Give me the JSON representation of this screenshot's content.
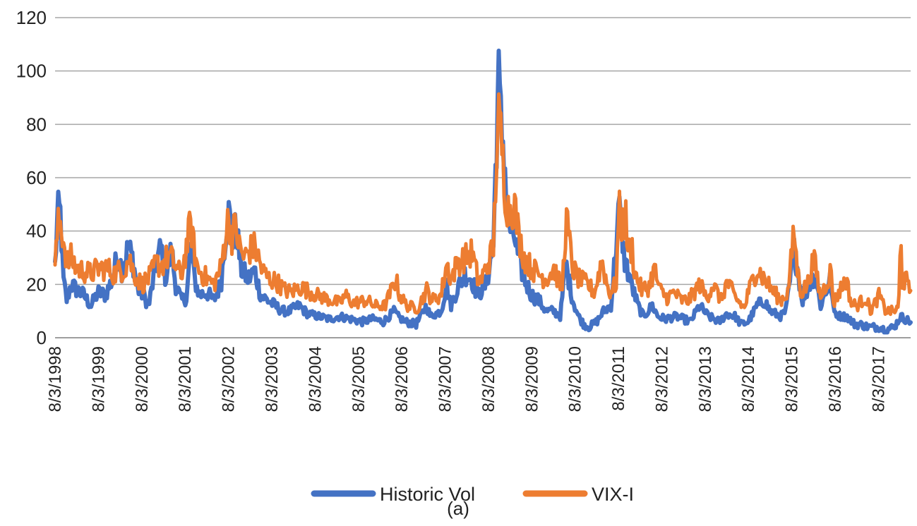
{
  "chart_data": {
    "type": "line",
    "title": "",
    "xlabel": "",
    "ylabel": "",
    "caption": "(a)",
    "ylim": [
      0,
      120
    ],
    "yticks": [
      0,
      20,
      40,
      60,
      80,
      100,
      120
    ],
    "xlim": [
      "1998-08-03",
      "2018-05-01"
    ],
    "x_tick_labels": [
      "8/3/1998",
      "8/3/1999",
      "8/3/2000",
      "8/3/2001",
      "8/3/2002",
      "8/3/2003",
      "8/3/2004",
      "8/3/2005",
      "8/3/2006",
      "8/3/2007",
      "8/3/2008",
      "8/3/2009",
      "8/3/2010",
      "8/3/2011",
      "8/3/2012",
      "8/3/2013",
      "8/3/2014",
      "8/3/2015",
      "8/3/2016",
      "8/3/2017"
    ],
    "grid": true,
    "legend_position": "bottom",
    "series": [
      {
        "name": "Historic Vol",
        "color": "#4472c4",
        "points": [
          [
            "1998-08-03",
            27
          ],
          [
            "1998-08-25",
            46
          ],
          [
            "1998-09-15",
            48
          ],
          [
            "1998-10-10",
            22
          ],
          [
            "1998-11-10",
            14
          ],
          [
            "1998-12-15",
            20
          ],
          [
            "1999-02-01",
            18
          ],
          [
            "1999-04-01",
            16
          ],
          [
            "1999-06-01",
            12
          ],
          [
            "1999-08-01",
            17
          ],
          [
            "1999-10-01",
            16
          ],
          [
            "1999-12-01",
            22
          ],
          [
            "2000-01-15",
            32
          ],
          [
            "2000-02-20",
            25
          ],
          [
            "2000-04-10",
            34
          ],
          [
            "2000-05-15",
            30
          ],
          [
            "2000-07-01",
            18
          ],
          [
            "2000-08-15",
            16
          ],
          [
            "2000-10-01",
            12
          ],
          [
            "2000-11-01",
            20
          ],
          [
            "2000-12-15",
            30
          ],
          [
            "2001-01-15",
            34
          ],
          [
            "2001-02-20",
            22
          ],
          [
            "2001-04-10",
            33
          ],
          [
            "2001-05-15",
            20
          ],
          [
            "2001-07-01",
            14
          ],
          [
            "2001-08-15",
            15
          ],
          [
            "2001-09-20",
            34
          ],
          [
            "2001-10-20",
            22
          ],
          [
            "2001-12-01",
            16
          ],
          [
            "2002-02-01",
            17
          ],
          [
            "2002-04-01",
            14
          ],
          [
            "2002-06-01",
            20
          ],
          [
            "2002-07-20",
            44
          ],
          [
            "2002-08-10",
            47
          ],
          [
            "2002-09-01",
            36
          ],
          [
            "2002-10-10",
            42
          ],
          [
            "2002-11-15",
            26
          ],
          [
            "2003-01-15",
            22
          ],
          [
            "2003-03-15",
            25
          ],
          [
            "2003-05-01",
            16
          ],
          [
            "2003-07-01",
            14
          ],
          [
            "2003-09-01",
            12
          ],
          [
            "2003-11-01",
            10
          ],
          [
            "2004-01-01",
            10
          ],
          [
            "2004-03-20",
            12
          ],
          [
            "2004-06-01",
            9
          ],
          [
            "2004-09-01",
            8
          ],
          [
            "2004-12-01",
            7
          ],
          [
            "2005-03-01",
            8
          ],
          [
            "2005-06-01",
            7
          ],
          [
            "2005-09-01",
            6
          ],
          [
            "2005-12-01",
            7
          ],
          [
            "2006-03-01",
            6
          ],
          [
            "2006-06-01",
            10
          ],
          [
            "2006-07-01",
            8
          ],
          [
            "2006-09-01",
            6
          ],
          [
            "2006-12-01",
            5
          ],
          [
            "2007-02-28",
            12
          ],
          [
            "2007-04-01",
            8
          ],
          [
            "2007-07-01",
            10
          ],
          [
            "2007-08-15",
            20
          ],
          [
            "2007-09-20",
            12
          ],
          [
            "2007-11-20",
            19
          ],
          [
            "2008-01-20",
            24
          ],
          [
            "2008-03-15",
            22
          ],
          [
            "2008-05-01",
            16
          ],
          [
            "2008-07-15",
            20
          ],
          [
            "2008-09-15",
            35
          ],
          [
            "2008-10-05",
            70
          ],
          [
            "2008-10-20",
            88
          ],
          [
            "2008-10-28",
            95
          ],
          [
            "2008-11-15",
            80
          ],
          [
            "2008-12-10",
            72
          ],
          [
            "2009-01-10",
            45
          ],
          [
            "2009-02-10",
            40
          ],
          [
            "2009-03-10",
            38
          ],
          [
            "2009-04-10",
            30
          ],
          [
            "2009-06-01",
            22
          ],
          [
            "2009-08-01",
            16
          ],
          [
            "2009-10-01",
            14
          ],
          [
            "2009-12-01",
            10
          ],
          [
            "2010-02-01",
            10
          ],
          [
            "2010-04-01",
            8
          ],
          [
            "2010-05-15",
            28
          ],
          [
            "2010-06-10",
            22
          ],
          [
            "2010-07-15",
            14
          ],
          [
            "2010-09-01",
            8
          ],
          [
            "2010-10-15",
            5
          ],
          [
            "2010-12-01",
            4
          ],
          [
            "2011-02-01",
            6
          ],
          [
            "2011-04-01",
            10
          ],
          [
            "2011-06-01",
            12
          ],
          [
            "2011-08-08",
            48
          ],
          [
            "2011-08-25",
            44
          ],
          [
            "2011-09-20",
            30
          ],
          [
            "2011-10-15",
            26
          ],
          [
            "2011-11-20",
            20
          ],
          [
            "2012-01-15",
            12
          ],
          [
            "2012-03-01",
            8
          ],
          [
            "2012-05-15",
            12
          ],
          [
            "2012-07-01",
            8
          ],
          [
            "2012-09-01",
            7
          ],
          [
            "2012-12-01",
            8
          ],
          [
            "2013-02-01",
            7
          ],
          [
            "2013-04-01",
            6
          ],
          [
            "2013-06-15",
            12
          ],
          [
            "2013-09-01",
            8
          ],
          [
            "2013-12-01",
            6
          ],
          [
            "2014-02-01",
            9
          ],
          [
            "2014-04-15",
            8
          ],
          [
            "2014-06-01",
            5
          ],
          [
            "2014-08-01",
            6
          ],
          [
            "2014-10-15",
            12
          ],
          [
            "2014-12-15",
            14
          ],
          [
            "2015-02-01",
            10
          ],
          [
            "2015-05-01",
            8
          ],
          [
            "2015-06-15",
            10
          ],
          [
            "2015-08-25",
            33
          ],
          [
            "2015-09-25",
            25
          ],
          [
            "2015-11-01",
            14
          ],
          [
            "2016-01-20",
            22
          ],
          [
            "2016-02-15",
            24
          ],
          [
            "2016-04-01",
            12
          ],
          [
            "2016-06-25",
            22
          ],
          [
            "2016-07-20",
            10
          ],
          [
            "2016-09-15",
            8
          ],
          [
            "2016-11-08",
            8
          ],
          [
            "2017-01-15",
            5
          ],
          [
            "2017-03-01",
            5
          ],
          [
            "2017-05-15",
            4
          ],
          [
            "2017-08-10",
            4
          ],
          [
            "2017-10-01",
            3
          ],
          [
            "2017-12-15",
            4
          ],
          [
            "2018-02-06",
            8
          ],
          [
            "2018-03-15",
            7
          ],
          [
            "2018-05-01",
            6
          ]
        ]
      },
      {
        "name": "VIX-I",
        "color": "#ed7d31",
        "points": [
          [
            "1998-08-03",
            26
          ],
          [
            "1998-08-20",
            38
          ],
          [
            "1998-09-05",
            44
          ],
          [
            "1998-09-25",
            42
          ],
          [
            "1998-10-15",
            36
          ],
          [
            "1998-11-15",
            28
          ],
          [
            "1998-12-15",
            30
          ],
          [
            "1999-02-01",
            26
          ],
          [
            "1999-04-01",
            25
          ],
          [
            "1999-06-01",
            24
          ],
          [
            "1999-08-01",
            26
          ],
          [
            "1999-10-15",
            26
          ],
          [
            "1999-12-15",
            24
          ],
          [
            "2000-01-25",
            25
          ],
          [
            "2000-03-15",
            26
          ],
          [
            "2000-04-15",
            30
          ],
          [
            "2000-06-01",
            24
          ],
          [
            "2000-08-01",
            20
          ],
          [
            "2000-10-15",
            23
          ],
          [
            "2000-12-01",
            28
          ],
          [
            "2001-01-15",
            27
          ],
          [
            "2001-03-20",
            31
          ],
          [
            "2001-05-01",
            28
          ],
          [
            "2001-07-01",
            23
          ],
          [
            "2001-09-20",
            43
          ],
          [
            "2001-10-15",
            34
          ],
          [
            "2001-11-15",
            26
          ],
          [
            "2002-01-15",
            23
          ],
          [
            "2002-04-01",
            20
          ],
          [
            "2002-06-01",
            26
          ],
          [
            "2002-07-15",
            40
          ],
          [
            "2002-08-05",
            45
          ],
          [
            "2002-09-01",
            38
          ],
          [
            "2002-10-05",
            42
          ],
          [
            "2002-11-01",
            34
          ],
          [
            "2002-12-15",
            30
          ],
          [
            "2003-02-01",
            33
          ],
          [
            "2003-03-15",
            34
          ],
          [
            "2003-05-15",
            25
          ],
          [
            "2003-07-15",
            22
          ],
          [
            "2003-09-15",
            21
          ],
          [
            "2003-11-15",
            18
          ],
          [
            "2004-01-15",
            17
          ],
          [
            "2004-03-20",
            19
          ],
          [
            "2004-05-15",
            18
          ],
          [
            "2004-08-15",
            16
          ],
          [
            "2004-10-15",
            15
          ],
          [
            "2004-12-15",
            14
          ],
          [
            "2005-03-01",
            13
          ],
          [
            "2005-04-15",
            16
          ],
          [
            "2005-06-15",
            13
          ],
          [
            "2005-10-15",
            14
          ],
          [
            "2005-12-15",
            12
          ],
          [
            "2006-03-15",
            12
          ],
          [
            "2006-06-15",
            22
          ],
          [
            "2006-07-15",
            16
          ],
          [
            "2006-09-15",
            12
          ],
          [
            "2006-12-15",
            11
          ],
          [
            "2007-02-28",
            18
          ],
          [
            "2007-04-15",
            14
          ],
          [
            "2007-07-01",
            16
          ],
          [
            "2007-08-16",
            28
          ],
          [
            "2007-09-20",
            22
          ],
          [
            "2007-11-15",
            28
          ],
          [
            "2008-01-22",
            30
          ],
          [
            "2008-03-17",
            32
          ],
          [
            "2008-05-15",
            20
          ],
          [
            "2008-07-15",
            26
          ],
          [
            "2008-09-15",
            34
          ],
          [
            "2008-10-10",
            70
          ],
          [
            "2008-10-27",
            80
          ],
          [
            "2008-11-20",
            74
          ],
          [
            "2008-12-15",
            58
          ],
          [
            "2009-01-15",
            48
          ],
          [
            "2009-03-10",
            50
          ],
          [
            "2009-04-15",
            38
          ],
          [
            "2009-06-01",
            30
          ],
          [
            "2009-08-01",
            26
          ],
          [
            "2009-10-01",
            24
          ],
          [
            "2009-12-01",
            22
          ],
          [
            "2010-02-05",
            26
          ],
          [
            "2010-04-15",
            18
          ],
          [
            "2010-05-20",
            45
          ],
          [
            "2010-06-15",
            36
          ],
          [
            "2010-07-15",
            26
          ],
          [
            "2010-09-01",
            22
          ],
          [
            "2010-11-15",
            20
          ],
          [
            "2011-01-15",
            17
          ],
          [
            "2011-03-16",
            29
          ],
          [
            "2011-05-15",
            17
          ],
          [
            "2011-07-15",
            20
          ],
          [
            "2011-08-08",
            48
          ],
          [
            "2011-08-25",
            42
          ],
          [
            "2011-10-03",
            45
          ],
          [
            "2011-10-25",
            32
          ],
          [
            "2011-11-25",
            34
          ],
          [
            "2011-12-20",
            24
          ],
          [
            "2012-02-15",
            18
          ],
          [
            "2012-04-15",
            19
          ],
          [
            "2012-06-01",
            26
          ],
          [
            "2012-07-15",
            18
          ],
          [
            "2012-09-15",
            15
          ],
          [
            "2012-11-15",
            17
          ],
          [
            "2013-01-15",
            14
          ],
          [
            "2013-03-15",
            14
          ],
          [
            "2013-06-20",
            20
          ],
          [
            "2013-08-15",
            15
          ],
          [
            "2013-10-08",
            20
          ],
          [
            "2013-12-15",
            14
          ],
          [
            "2014-02-03",
            21
          ],
          [
            "2014-04-15",
            15
          ],
          [
            "2014-07-01",
            11
          ],
          [
            "2014-08-01",
            17
          ],
          [
            "2014-10-15",
            26
          ],
          [
            "2014-12-15",
            22
          ],
          [
            "2015-02-01",
            19
          ],
          [
            "2015-05-01",
            14
          ],
          [
            "2015-07-01",
            17
          ],
          [
            "2015-08-24",
            40
          ],
          [
            "2015-09-20",
            25
          ],
          [
            "2015-10-20",
            17
          ],
          [
            "2015-12-15",
            20
          ],
          [
            "2016-01-20",
            27
          ],
          [
            "2016-02-15",
            28
          ],
          [
            "2016-04-01",
            15
          ],
          [
            "2016-06-27",
            25
          ],
          [
            "2016-07-20",
            13
          ],
          [
            "2016-09-15",
            18
          ],
          [
            "2016-11-04",
            22
          ],
          [
            "2016-12-15",
            13
          ],
          [
            "2017-02-01",
            12
          ],
          [
            "2017-04-15",
            15
          ],
          [
            "2017-06-01",
            10
          ],
          [
            "2017-08-10",
            16
          ],
          [
            "2017-10-01",
            10
          ],
          [
            "2017-12-15",
            10
          ],
          [
            "2018-01-20",
            11
          ],
          [
            "2018-02-06",
            37
          ],
          [
            "2018-02-20",
            20
          ],
          [
            "2018-03-20",
            22
          ],
          [
            "2018-04-15",
            18
          ]
        ]
      }
    ]
  }
}
